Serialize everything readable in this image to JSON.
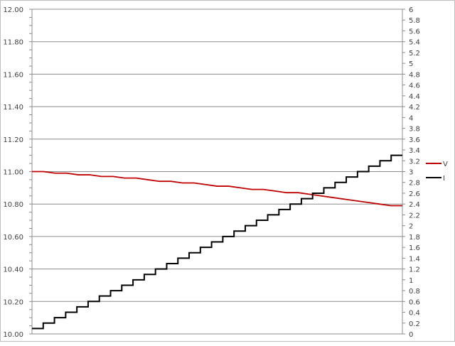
{
  "chart_data": {
    "type": "line",
    "title": "",
    "xlabel": "",
    "ylabel": "",
    "y_left": {
      "range": [
        10.0,
        12.0
      ],
      "major_step": 0.2,
      "minor_step": 0.05,
      "ticks": [
        "10.00",
        "10.20",
        "10.40",
        "10.60",
        "10.80",
        "11.00",
        "11.20",
        "11.40",
        "11.60",
        "11.80",
        "12.00"
      ]
    },
    "y_right": {
      "range": [
        0,
        6
      ],
      "step": 0.2,
      "ticks": [
        "0",
        "0.2",
        "0.4",
        "0.6",
        "0.8",
        "1",
        "1.2",
        "1.4",
        "1.6",
        "1.8",
        "2",
        "2.2",
        "2.4",
        "2.6",
        "2.8",
        "3",
        "3.2",
        "3.4",
        "3.6",
        "3.8",
        "4",
        "4.2",
        "4.4",
        "4.6",
        "4.8",
        "5",
        "5.2",
        "5.4",
        "5.6",
        "5.8",
        "6"
      ]
    },
    "grid": "horizontal major",
    "legend_position": "right",
    "series": [
      {
        "name": "V",
        "axis": "left",
        "color": "#c00000",
        "style": "line",
        "values": [
          11.0,
          11.0,
          10.99,
          10.99,
          10.98,
          10.98,
          10.97,
          10.97,
          10.96,
          10.96,
          10.95,
          10.94,
          10.94,
          10.93,
          10.93,
          10.92,
          10.91,
          10.91,
          10.9,
          10.89,
          10.89,
          10.88,
          10.87,
          10.87,
          10.86,
          10.85,
          10.84,
          10.83,
          10.82,
          10.81,
          10.8,
          10.79,
          10.79
        ]
      },
      {
        "name": "I",
        "axis": "right",
        "color": "#000000",
        "style": "step",
        "values": [
          0.1,
          0.2,
          0.3,
          0.4,
          0.5,
          0.6,
          0.7,
          0.8,
          0.9,
          1.0,
          1.1,
          1.2,
          1.3,
          1.4,
          1.5,
          1.6,
          1.7,
          1.8,
          1.9,
          2.0,
          2.1,
          2.2,
          2.3,
          2.4,
          2.5,
          2.6,
          2.7,
          2.8,
          2.9,
          3.0,
          3.1,
          3.2,
          3.3
        ]
      }
    ]
  }
}
